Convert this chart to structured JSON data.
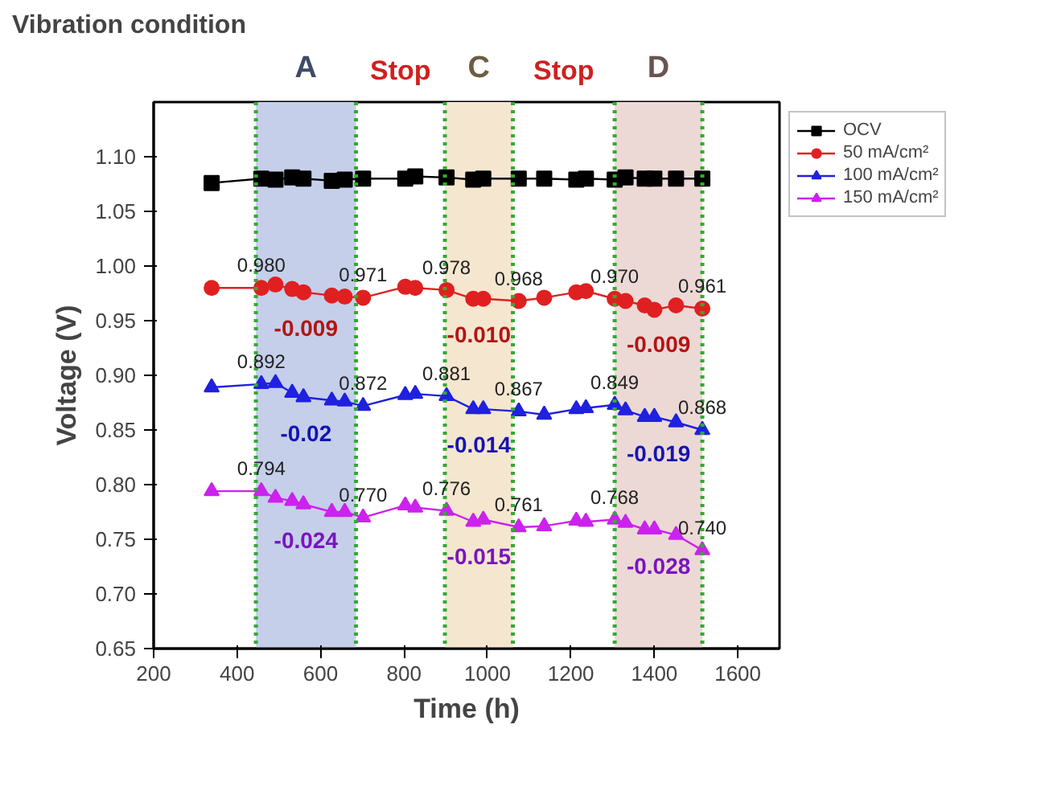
{
  "chart_data": {
    "type": "line",
    "title": "Vibration condition",
    "xlabel": "Time (h)",
    "ylabel": "Voltage (V)",
    "x": [
      339,
      458,
      492,
      532,
      559,
      627,
      658,
      702,
      803,
      827,
      902,
      966,
      990,
      1075,
      1136,
      1213,
      1236,
      1305,
      1331,
      1377,
      1400,
      1452,
      1515
    ],
    "series": [
      {
        "name": "OCV",
        "color": "#000000",
        "marker": "square",
        "values": [
          1.076,
          1.08,
          1.079,
          1.081,
          1.08,
          1.078,
          1.079,
          1.08,
          1.08,
          1.082,
          1.081,
          1.079,
          1.08,
          1.08,
          1.08,
          1.079,
          1.08,
          1.079,
          1.081,
          1.08,
          1.08,
          1.08,
          1.08
        ]
      },
      {
        "name": "50 mA/cm²",
        "color": "#e02020",
        "marker": "circle",
        "values": [
          0.98,
          0.98,
          0.983,
          0.979,
          0.976,
          0.973,
          0.972,
          0.971,
          0.981,
          0.98,
          0.978,
          0.97,
          0.97,
          0.968,
          0.971,
          0.976,
          0.977,
          0.97,
          0.968,
          0.964,
          0.96,
          0.964,
          0.961
        ]
      },
      {
        "name": "100 mA/cm²",
        "color": "#2020e0",
        "marker": "triangle",
        "values": [
          0.889,
          0.892,
          0.893,
          0.884,
          0.88,
          0.877,
          0.876,
          0.872,
          0.882,
          0.883,
          0.881,
          0.869,
          0.869,
          0.867,
          0.864,
          0.869,
          0.87,
          0.873,
          0.868,
          0.862,
          0.862,
          0.857,
          0.85
        ]
      },
      {
        "name": "150 mA/cm²",
        "color": "#cc22ee",
        "marker": "triangle",
        "values": [
          0.794,
          0.794,
          0.788,
          0.785,
          0.782,
          0.775,
          0.775,
          0.77,
          0.781,
          0.779,
          0.776,
          0.766,
          0.768,
          0.761,
          0.762,
          0.767,
          0.766,
          0.768,
          0.765,
          0.759,
          0.759,
          0.754,
          0.74
        ]
      }
    ],
    "xlim": [
      200,
      1700
    ],
    "xticks": [
      200,
      400,
      600,
      800,
      1000,
      1200,
      1400,
      1600
    ],
    "ylim": [
      0.65,
      1.15
    ],
    "yticks": [
      0.65,
      {
        "value": 0.7,
        "label": "0.70"
      },
      0.75,
      {
        "value": 0.8,
        "label": "0.80"
      },
      0.85,
      {
        "value": 0.9,
        "label": "0.90"
      },
      0.95,
      {
        "value": 1.0,
        "label": "1.00"
      },
      1.05,
      {
        "value": 1.1,
        "label": "1.10"
      }
    ],
    "bands": [
      {
        "axis": "x",
        "from": 445,
        "to": 685,
        "label": "A",
        "color": "#c5cfea"
      },
      {
        "axis": "x",
        "from": 898,
        "to": 1061,
        "label": "C",
        "color": "#f5e6d0"
      },
      {
        "axis": "x",
        "from": 1305,
        "to": 1515,
        "label": "D",
        "color": "#ecd9d6"
      }
    ],
    "ref_lines": [
      {
        "axis": "x",
        "value": 445,
        "color": "#33aa33",
        "line_style": "dotted"
      },
      {
        "axis": "x",
        "value": 685,
        "color": "#33aa33",
        "line_style": "dotted"
      },
      {
        "axis": "x",
        "value": 898,
        "color": "#33aa33",
        "line_style": "dotted"
      },
      {
        "axis": "x",
        "value": 1061,
        "color": "#33aa33",
        "line_style": "dotted"
      },
      {
        "axis": "x",
        "value": 1305,
        "color": "#33aa33",
        "line_style": "dotted"
      },
      {
        "axis": "x",
        "value": 1515,
        "color": "#33aa33",
        "line_style": "dotted"
      }
    ],
    "annotations": [
      "Stop",
      "Stop",
      {
        "text": "0.980",
        "x": 458,
        "y": 0.98
      },
      {
        "text": "0.971",
        "x": 702,
        "y": 0.971
      },
      {
        "text": "0.978",
        "x": 902,
        "y": 0.978
      },
      {
        "text": "0.968",
        "x": 1075,
        "y": 0.968
      },
      {
        "text": "0.970",
        "x": 1305,
        "y": 0.97
      },
      {
        "text": "0.961",
        "x": 1515,
        "y": 0.961
      },
      {
        "text": "0.892",
        "x": 458,
        "y": 0.892
      },
      {
        "text": "0.872",
        "x": 702,
        "y": 0.872
      },
      {
        "text": "0.881",
        "x": 902,
        "y": 0.881
      },
      {
        "text": "0.867",
        "x": 1075,
        "y": 0.867
      },
      {
        "text": "0.849",
        "x": 1305,
        "y": 0.873
      },
      {
        "text": "0.868",
        "x": 1515,
        "y": 0.85
      },
      {
        "text": "0.794",
        "x": 458,
        "y": 0.794
      },
      {
        "text": "0.770",
        "x": 702,
        "y": 0.77
      },
      {
        "text": "0.776",
        "x": 902,
        "y": 0.776
      },
      {
        "text": "0.761",
        "x": 1075,
        "y": 0.761
      },
      {
        "text": "0.768",
        "x": 1305,
        "y": 0.768
      },
      {
        "text": "0.740",
        "x": 1515,
        "y": 0.74
      },
      "-0.009",
      "-0.010",
      "-0.009",
      "-0.02",
      "-0.014",
      "-0.019",
      "-0.024",
      "-0.015",
      "-0.028"
    ],
    "legend": "right",
    "grid": false
  }
}
